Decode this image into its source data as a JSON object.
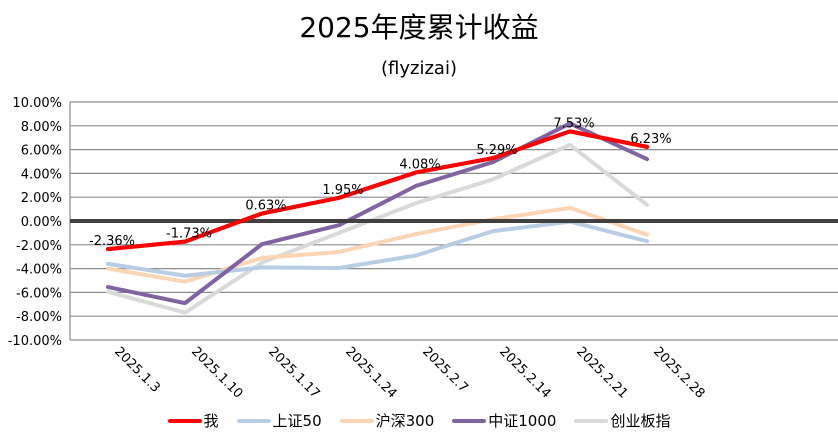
{
  "chart_data": {
    "type": "line",
    "title": "2025年度累计收益",
    "subtitle": "(flyzizai)",
    "xlabel": "",
    "ylabel": "",
    "categories": [
      "2025.1.3",
      "2025.1.10",
      "2025.1.17",
      "2025.1.24",
      "2025.2.7",
      "2025.2.14",
      "2025.2.21",
      "2025.2.28"
    ],
    "ylim": [
      -10,
      10
    ],
    "y_ticks": [
      10,
      8,
      6,
      4,
      2,
      0,
      -2,
      -4,
      -6,
      -8,
      -10
    ],
    "y_tick_labels": [
      "10.00%",
      "8.00%",
      "6.00%",
      "4.00%",
      "2.00%",
      "0.00%",
      "-2.00%",
      "-4.00%",
      "-6.00%",
      "-8.00%",
      "-10.00%"
    ],
    "grid": true,
    "legend_position": "bottom",
    "series": [
      {
        "name": "我",
        "color": "#ff0000",
        "values": [
          -2.36,
          -1.73,
          0.63,
          1.95,
          4.08,
          5.29,
          7.53,
          6.23
        ],
        "data_labels": [
          "-2.36%",
          "-1.73%",
          "0.63%",
          "1.95%",
          "4.08%",
          "5.29%",
          "7.53%",
          "6.23%"
        ]
      },
      {
        "name": "上证50",
        "color": "#b8cce4",
        "values": [
          -3.6,
          -4.6,
          -3.9,
          -3.95,
          -2.9,
          -0.85,
          -0.05,
          -1.7
        ]
      },
      {
        "name": "沪深300",
        "color": "#fcd5b5",
        "values": [
          -4.0,
          -5.1,
          -3.1,
          -2.6,
          -1.1,
          0.15,
          1.1,
          -1.15
        ]
      },
      {
        "name": "中证1000",
        "color": "#8064a2",
        "values": [
          -5.55,
          -6.9,
          -1.95,
          -0.35,
          2.95,
          4.95,
          8.2,
          5.2
        ]
      },
      {
        "name": "创业板指",
        "color": "#d9d9d9",
        "values": [
          -5.95,
          -7.7,
          -3.5,
          -1.0,
          1.5,
          3.5,
          6.4,
          1.35
        ]
      }
    ]
  }
}
